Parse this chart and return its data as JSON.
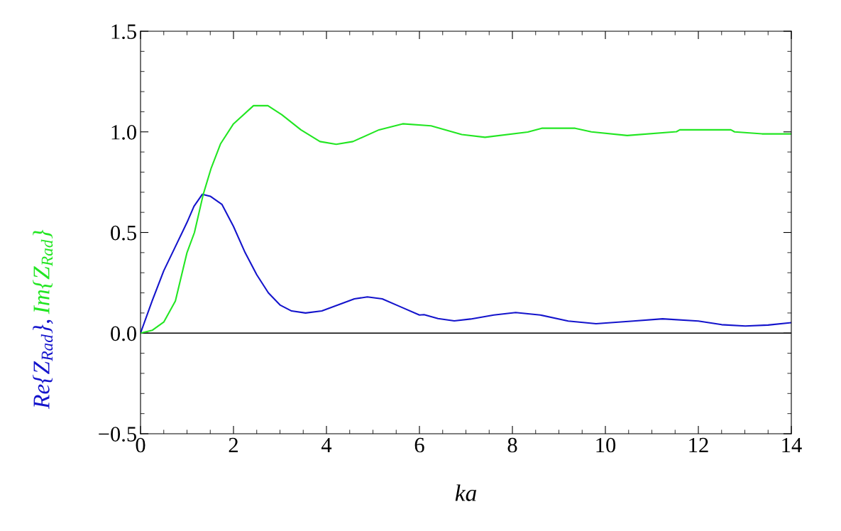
{
  "chart_data": {
    "type": "line",
    "xlabel": "ka",
    "series": [
      {
        "name": "Re{Z$_{Rad}$},",
        "color": "#1414cc",
        "x": [
          0,
          0.25,
          0.5,
          0.75,
          1,
          1.15,
          1.33,
          1.5,
          1.75,
          2,
          2.25,
          2.5,
          2.75,
          3,
          3.25,
          3.55,
          3.9,
          4.25,
          4.6,
          4.88,
          5.2,
          5.6,
          6.0,
          6.1,
          6.4,
          6.75,
          7.1,
          7.6,
          8.07,
          8.6,
          9.2,
          9.8,
          10.6,
          11.23,
          12.0,
          12.5,
          13.01,
          13.5,
          14
        ],
        "values": [
          0,
          0.16,
          0.31,
          0.43,
          0.55,
          0.63,
          0.69,
          0.68,
          0.64,
          0.53,
          0.4,
          0.29,
          0.2,
          0.14,
          0.11,
          0.1,
          0.11,
          0.14,
          0.17,
          0.18,
          0.17,
          0.13,
          0.09,
          0.092,
          0.072,
          0.061,
          0.07,
          0.09,
          0.102,
          0.09,
          0.06,
          0.047,
          0.06,
          0.071,
          0.06,
          0.042,
          0.035,
          0.04,
          0.052
        ]
      },
      {
        "name": "Im{Z$_{Rad}$}",
        "color": "#22e622",
        "x": [
          0,
          0.25,
          0.5,
          0.75,
          1.0,
          1.16,
          1.35,
          1.52,
          1.72,
          2.0,
          2.43,
          2.74,
          3.04,
          3.45,
          3.86,
          4.21,
          4.57,
          5.13,
          5.64,
          6.25,
          6.91,
          7.41,
          8.33,
          8.63,
          9.35,
          9.7,
          10.47,
          11.53,
          11.6,
          12.7,
          12.78,
          13.37,
          14
        ],
        "values": [
          0,
          0.014,
          0.055,
          0.16,
          0.4,
          0.5,
          0.69,
          0.82,
          0.94,
          1.04,
          1.13,
          1.13,
          1.085,
          1.01,
          0.952,
          0.938,
          0.952,
          1.01,
          1.04,
          1.03,
          0.987,
          0.973,
          0.999,
          1.018,
          1.018,
          1.0,
          0.982,
          1.001,
          1.01,
          1.01,
          1.0,
          0.99,
          0.99
        ]
      }
    ],
    "xlim": [
      0,
      14
    ],
    "ylim": [
      -0.5,
      1.5
    ],
    "xticks": [
      0,
      2,
      4,
      6,
      8,
      10,
      12,
      14
    ],
    "yticks": [
      {
        "value": -0.5,
        "label": "−0.5"
      },
      {
        "value": 0,
        "label": "0.0"
      },
      {
        "value": 0.5,
        "label": "0.5"
      },
      {
        "value": 1.0,
        "label": "1.0"
      },
      {
        "value": 1.5,
        "label": "1.5"
      }
    ],
    "ref_lines": [
      {
        "axis": "y",
        "value": 0,
        "color": "#000000"
      }
    ],
    "grid": false,
    "legend": false,
    "marker": "none",
    "line_style": "solid"
  }
}
